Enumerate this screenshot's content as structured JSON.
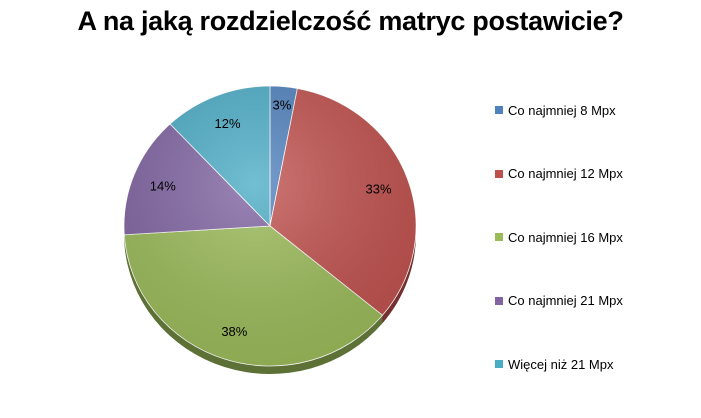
{
  "chart_data": {
    "type": "pie",
    "title": "A na jaką rozdzielczość matryc postawicie?",
    "slices": [
      {
        "label": "Co najmniej 8 Mpx",
        "value": 3,
        "value_label": "3%",
        "color": "#4f81bd"
      },
      {
        "label": "Co najmniej 12 Mpx",
        "value": 33,
        "value_label": "33%",
        "color": "#c0504d"
      },
      {
        "label": "Co najmniej 16 Mpx",
        "value": 38,
        "value_label": "38%",
        "color": "#9bbb59"
      },
      {
        "label": "Co najmniej 21 Mpx",
        "value": 14,
        "value_label": "14%",
        "color": "#8064a2"
      },
      {
        "label": "Więcej niż 21 Mpx",
        "value": 12,
        "value_label": "12%",
        "color": "#4bacc6"
      }
    ],
    "legend_position": "right",
    "start_angle": "top",
    "direction": "clockwise",
    "style": "3d-tilted"
  }
}
